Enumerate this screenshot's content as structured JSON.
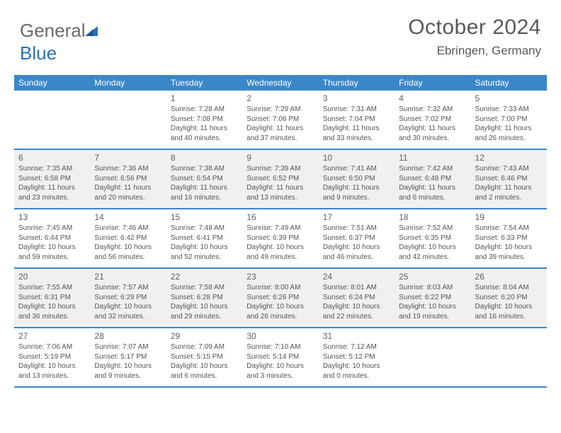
{
  "brand": {
    "part1": "General",
    "part2": "Blue"
  },
  "title": {
    "month_year": "October 2024",
    "location": "Ebringen, Germany"
  },
  "colors": {
    "header_bg": "#3b87c8",
    "header_text": "#ffffff",
    "alt_row_bg": "#f0f0f0",
    "border": "#3b87c8",
    "text": "#555555",
    "title_text": "#595959"
  },
  "weekdays": [
    "Sunday",
    "Monday",
    "Tuesday",
    "Wednesday",
    "Thursday",
    "Friday",
    "Saturday"
  ],
  "weeks": [
    {
      "alt": false,
      "days": [
        {
          "empty": true
        },
        {
          "empty": true
        },
        {
          "num": "1",
          "sunrise": "Sunrise: 7:28 AM",
          "sunset": "Sunset: 7:08 PM",
          "daylight": "Daylight: 11 hours and 40 minutes."
        },
        {
          "num": "2",
          "sunrise": "Sunrise: 7:29 AM",
          "sunset": "Sunset: 7:06 PM",
          "daylight": "Daylight: 11 hours and 37 minutes."
        },
        {
          "num": "3",
          "sunrise": "Sunrise: 7:31 AM",
          "sunset": "Sunset: 7:04 PM",
          "daylight": "Daylight: 11 hours and 33 minutes."
        },
        {
          "num": "4",
          "sunrise": "Sunrise: 7:32 AM",
          "sunset": "Sunset: 7:02 PM",
          "daylight": "Daylight: 11 hours and 30 minutes."
        },
        {
          "num": "5",
          "sunrise": "Sunrise: 7:33 AM",
          "sunset": "Sunset: 7:00 PM",
          "daylight": "Daylight: 11 hours and 26 minutes."
        }
      ]
    },
    {
      "alt": true,
      "days": [
        {
          "num": "6",
          "sunrise": "Sunrise: 7:35 AM",
          "sunset": "Sunset: 6:58 PM",
          "daylight": "Daylight: 11 hours and 23 minutes."
        },
        {
          "num": "7",
          "sunrise": "Sunrise: 7:36 AM",
          "sunset": "Sunset: 6:56 PM",
          "daylight": "Daylight: 11 hours and 20 minutes."
        },
        {
          "num": "8",
          "sunrise": "Sunrise: 7:38 AM",
          "sunset": "Sunset: 6:54 PM",
          "daylight": "Daylight: 11 hours and 16 minutes."
        },
        {
          "num": "9",
          "sunrise": "Sunrise: 7:39 AM",
          "sunset": "Sunset: 6:52 PM",
          "daylight": "Daylight: 11 hours and 13 minutes."
        },
        {
          "num": "10",
          "sunrise": "Sunrise: 7:41 AM",
          "sunset": "Sunset: 6:50 PM",
          "daylight": "Daylight: 11 hours and 9 minutes."
        },
        {
          "num": "11",
          "sunrise": "Sunrise: 7:42 AM",
          "sunset": "Sunset: 6:48 PM",
          "daylight": "Daylight: 11 hours and 6 minutes."
        },
        {
          "num": "12",
          "sunrise": "Sunrise: 7:43 AM",
          "sunset": "Sunset: 6:46 PM",
          "daylight": "Daylight: 11 hours and 2 minutes."
        }
      ]
    },
    {
      "alt": false,
      "days": [
        {
          "num": "13",
          "sunrise": "Sunrise: 7:45 AM",
          "sunset": "Sunset: 6:44 PM",
          "daylight": "Daylight: 10 hours and 59 minutes."
        },
        {
          "num": "14",
          "sunrise": "Sunrise: 7:46 AM",
          "sunset": "Sunset: 6:42 PM",
          "daylight": "Daylight: 10 hours and 56 minutes."
        },
        {
          "num": "15",
          "sunrise": "Sunrise: 7:48 AM",
          "sunset": "Sunset: 6:41 PM",
          "daylight": "Daylight: 10 hours and 52 minutes."
        },
        {
          "num": "16",
          "sunrise": "Sunrise: 7:49 AM",
          "sunset": "Sunset: 6:39 PM",
          "daylight": "Daylight: 10 hours and 49 minutes."
        },
        {
          "num": "17",
          "sunrise": "Sunrise: 7:51 AM",
          "sunset": "Sunset: 6:37 PM",
          "daylight": "Daylight: 10 hours and 46 minutes."
        },
        {
          "num": "18",
          "sunrise": "Sunrise: 7:52 AM",
          "sunset": "Sunset: 6:35 PM",
          "daylight": "Daylight: 10 hours and 42 minutes."
        },
        {
          "num": "19",
          "sunrise": "Sunrise: 7:54 AM",
          "sunset": "Sunset: 6:33 PM",
          "daylight": "Daylight: 10 hours and 39 minutes."
        }
      ]
    },
    {
      "alt": true,
      "days": [
        {
          "num": "20",
          "sunrise": "Sunrise: 7:55 AM",
          "sunset": "Sunset: 6:31 PM",
          "daylight": "Daylight: 10 hours and 36 minutes."
        },
        {
          "num": "21",
          "sunrise": "Sunrise: 7:57 AM",
          "sunset": "Sunset: 6:29 PM",
          "daylight": "Daylight: 10 hours and 32 minutes."
        },
        {
          "num": "22",
          "sunrise": "Sunrise: 7:58 AM",
          "sunset": "Sunset: 6:28 PM",
          "daylight": "Daylight: 10 hours and 29 minutes."
        },
        {
          "num": "23",
          "sunrise": "Sunrise: 8:00 AM",
          "sunset": "Sunset: 6:26 PM",
          "daylight": "Daylight: 10 hours and 26 minutes."
        },
        {
          "num": "24",
          "sunrise": "Sunrise: 8:01 AM",
          "sunset": "Sunset: 6:24 PM",
          "daylight": "Daylight: 10 hours and 22 minutes."
        },
        {
          "num": "25",
          "sunrise": "Sunrise: 8:03 AM",
          "sunset": "Sunset: 6:22 PM",
          "daylight": "Daylight: 10 hours and 19 minutes."
        },
        {
          "num": "26",
          "sunrise": "Sunrise: 8:04 AM",
          "sunset": "Sunset: 6:20 PM",
          "daylight": "Daylight: 10 hours and 16 minutes."
        }
      ]
    },
    {
      "alt": false,
      "days": [
        {
          "num": "27",
          "sunrise": "Sunrise: 7:06 AM",
          "sunset": "Sunset: 5:19 PM",
          "daylight": "Daylight: 10 hours and 13 minutes."
        },
        {
          "num": "28",
          "sunrise": "Sunrise: 7:07 AM",
          "sunset": "Sunset: 5:17 PM",
          "daylight": "Daylight: 10 hours and 9 minutes."
        },
        {
          "num": "29",
          "sunrise": "Sunrise: 7:09 AM",
          "sunset": "Sunset: 5:15 PM",
          "daylight": "Daylight: 10 hours and 6 minutes."
        },
        {
          "num": "30",
          "sunrise": "Sunrise: 7:10 AM",
          "sunset": "Sunset: 5:14 PM",
          "daylight": "Daylight: 10 hours and 3 minutes."
        },
        {
          "num": "31",
          "sunrise": "Sunrise: 7:12 AM",
          "sunset": "Sunset: 5:12 PM",
          "daylight": "Daylight: 10 hours and 0 minutes."
        },
        {
          "empty": true
        },
        {
          "empty": true
        }
      ]
    }
  ]
}
